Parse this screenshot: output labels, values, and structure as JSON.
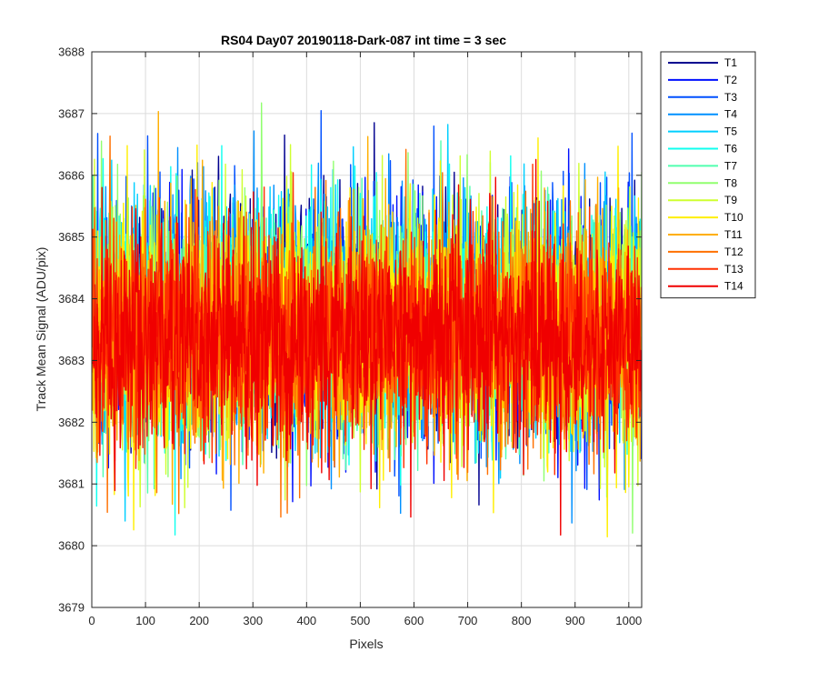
{
  "chart_data": {
    "type": "line",
    "title": "RS04 Day07 20190118-Dark-087 int time = 3 sec",
    "xlabel": "Pixels",
    "ylabel": "Track Mean Signal (ADU/pix)",
    "xlim": [
      0,
      1024
    ],
    "ylim": [
      3679,
      3688
    ],
    "grid": true,
    "legend_position": "outside-top-right",
    "x_ticks": [
      "0",
      "100",
      "200",
      "300",
      "400",
      "500",
      "600",
      "700",
      "800",
      "900",
      "1000"
    ],
    "y_ticks": [
      "3679",
      "3680",
      "3681",
      "3682",
      "3683",
      "3684",
      "3685",
      "3686",
      "3687",
      "3688"
    ],
    "x_tick_values": [
      0,
      100,
      200,
      300,
      400,
      500,
      600,
      700,
      800,
      900,
      1000
    ],
    "y_tick_values": [
      3679,
      3680,
      3681,
      3682,
      3683,
      3684,
      3685,
      3686,
      3687,
      3688
    ],
    "points_per_series": 1024,
    "series_stats_note": "Noise traces centered near 3683.5 ADU with roughly 0.9 ADU standard deviation; extremes from about 3679.7 to 3687.8",
    "series": [
      {
        "name": "T1",
        "color": "#00008F",
        "mean": 3683.6,
        "std": 0.9
      },
      {
        "name": "T2",
        "color": "#0010FF",
        "mean": 3683.6,
        "std": 0.9
      },
      {
        "name": "T3",
        "color": "#0050FF",
        "mean": 3683.6,
        "std": 0.9
      },
      {
        "name": "T4",
        "color": "#0090FF",
        "mean": 3683.7,
        "std": 0.9
      },
      {
        "name": "T5",
        "color": "#00CFFF",
        "mean": 3683.7,
        "std": 0.9
      },
      {
        "name": "T6",
        "color": "#10FFEF",
        "mean": 3683.7,
        "std": 0.9
      },
      {
        "name": "T7",
        "color": "#50FFAF",
        "mean": 3683.6,
        "std": 0.9
      },
      {
        "name": "T8",
        "color": "#90FF6F",
        "mean": 3683.6,
        "std": 0.9
      },
      {
        "name": "T9",
        "color": "#CFFF30",
        "mean": 3683.6,
        "std": 0.9
      },
      {
        "name": "T10",
        "color": "#FFEF00",
        "mean": 3683.5,
        "std": 0.9
      },
      {
        "name": "T11",
        "color": "#FFAF00",
        "mean": 3683.4,
        "std": 0.9
      },
      {
        "name": "T12",
        "color": "#FF7000",
        "mean": 3683.4,
        "std": 0.9
      },
      {
        "name": "T13",
        "color": "#FF3000",
        "mean": 3683.4,
        "std": 0.8
      },
      {
        "name": "T14",
        "color": "#F00000",
        "mean": 3683.4,
        "std": 0.8
      }
    ]
  }
}
